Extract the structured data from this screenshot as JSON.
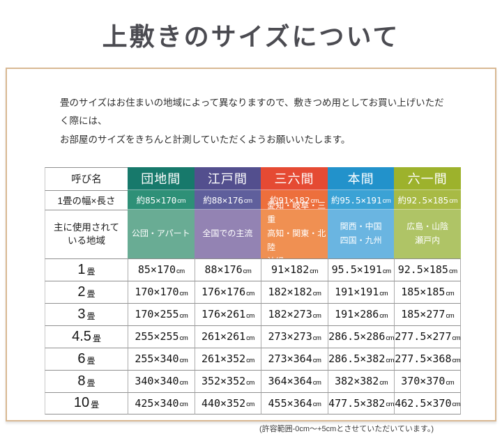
{
  "page": {
    "title": "上敷きのサイズについて",
    "intro_line1": "畳のサイズはお住まいの地域によって異なりますので、敷きつめ用としてお買い上げいただく際には、",
    "intro_line2": "お部屋のサイズをきちんと計測していただくようお願いいたします。",
    "footnote": "(許容範囲-0cm～+5cmとさせていただいています。)"
  },
  "table": {
    "unit": "cm",
    "tatami": "畳",
    "headers": {
      "name": "呼び名",
      "width": "1畳の幅×長さ",
      "region_line1": "主に使用されて",
      "region_line2": "いる地域"
    },
    "columns": [
      {
        "label": "団地間",
        "width": "約85×170",
        "regions": [
          "公団・アパート",
          "",
          ""
        ],
        "colors": {
          "header": "#17796b",
          "width": "#2e9077",
          "region": "#69ac94"
        }
      },
      {
        "label": "江戸間",
        "width": "約88×176",
        "regions": [
          "全国での主流",
          "",
          ""
        ],
        "colors": {
          "header": "#534f8e",
          "width": "#5f5f9c",
          "region": "#9383b3"
        }
      },
      {
        "label": "三六間",
        "width": "約91×182",
        "regions": [
          "愛知・岐阜・三重",
          "高知・関東・北陸",
          "沖縄"
        ],
        "colors": {
          "header": "#e54a33",
          "width": "#ed6f3c",
          "region": "#f09052"
        }
      },
      {
        "label": "本間",
        "width": "約95.5×191",
        "regions": [
          "関西・中国",
          "四国・九州",
          ""
        ],
        "colors": {
          "header": "#2292cb",
          "width": "#3ba2d5",
          "region": "#6ab5e1"
        }
      },
      {
        "label": "六一間",
        "width": "約92.5×185",
        "regions": [
          "広島・山陰",
          "瀬戸内",
          ""
        ],
        "colors": {
          "header": "#9db22c",
          "width": "#a8ba45",
          "region": "#afc466"
        }
      }
    ],
    "rows": [
      {
        "size": "1",
        "values": [
          "85×170",
          "88×176",
          "91×182",
          "95.5×191",
          "92.5×185"
        ]
      },
      {
        "size": "2",
        "values": [
          "170×170",
          "176×176",
          "182×182",
          "191×191",
          "185×185"
        ]
      },
      {
        "size": "3",
        "values": [
          "170×255",
          "176×261",
          "182×273",
          "191×286",
          "185×277"
        ]
      },
      {
        "size": "4.5",
        "values": [
          "255×255",
          "261×261",
          "273×273",
          "286.5×286",
          "277.5×277"
        ]
      },
      {
        "size": "6",
        "values": [
          "255×340",
          "261×352",
          "273×364",
          "286.5×382",
          "277.5×368"
        ]
      },
      {
        "size": "8",
        "values": [
          "340×340",
          "352×352",
          "364×364",
          "382×382",
          "370×370"
        ]
      },
      {
        "size": "10",
        "values": [
          "425×340",
          "440×352",
          "455×364",
          "477.5×382",
          "462.5×370"
        ]
      }
    ]
  }
}
